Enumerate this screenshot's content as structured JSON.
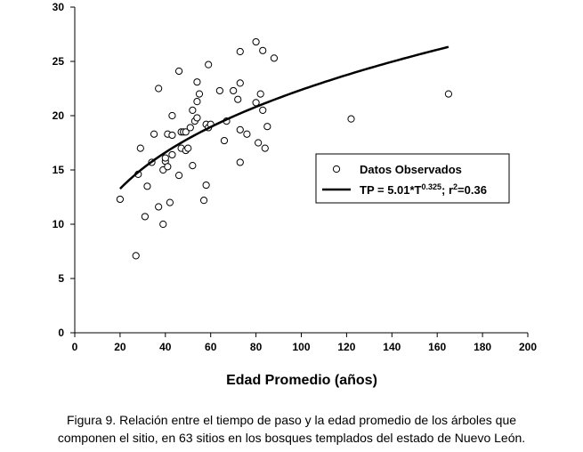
{
  "chart_data": {
    "type": "scatter",
    "xlabel": "Edad Promedio (años)",
    "ylabel": "",
    "xlim": [
      0,
      200
    ],
    "ylim": [
      0,
      30
    ],
    "x_ticks": [
      "0",
      "20",
      "40",
      "60",
      "80",
      "100",
      "120",
      "140",
      "160",
      "180",
      "200"
    ],
    "y_ticks": [
      "0",
      "5",
      "10",
      "15",
      "20",
      "25",
      "30"
    ],
    "grid": false,
    "legend_position": "middle-right",
    "series": [
      {
        "name": "Datos Observados",
        "kind": "scatter",
        "marker": "open-circle",
        "points": [
          [
            20,
            12.3
          ],
          [
            27,
            7.1
          ],
          [
            28,
            14.6
          ],
          [
            29,
            17.0
          ],
          [
            31,
            10.7
          ],
          [
            32,
            13.5
          ],
          [
            34,
            15.7
          ],
          [
            35,
            18.3
          ],
          [
            37,
            11.6
          ],
          [
            37,
            22.5
          ],
          [
            39,
            10.0
          ],
          [
            39,
            15.0
          ],
          [
            40,
            15.8
          ],
          [
            40,
            16.1
          ],
          [
            41,
            15.3
          ],
          [
            41,
            18.3
          ],
          [
            42,
            12.0
          ],
          [
            43,
            20.0
          ],
          [
            43,
            18.2
          ],
          [
            43,
            16.4
          ],
          [
            46,
            24.1
          ],
          [
            46,
            14.5
          ],
          [
            47,
            18.5
          ],
          [
            47,
            17.0
          ],
          [
            48,
            18.5
          ],
          [
            49,
            16.8
          ],
          [
            49,
            18.5
          ],
          [
            50,
            17.0
          ],
          [
            51,
            18.9
          ],
          [
            52,
            20.5
          ],
          [
            52,
            15.4
          ],
          [
            53,
            19.5
          ],
          [
            54,
            19.8
          ],
          [
            54,
            21.3
          ],
          [
            54,
            23.1
          ],
          [
            55,
            22.0
          ],
          [
            57,
            12.2
          ],
          [
            58,
            13.6
          ],
          [
            58,
            19.2
          ],
          [
            59,
            24.7
          ],
          [
            59,
            18.9
          ],
          [
            60,
            19.2
          ],
          [
            64,
            22.3
          ],
          [
            66,
            17.7
          ],
          [
            67,
            19.5
          ],
          [
            70,
            22.3
          ],
          [
            72,
            21.5
          ],
          [
            73,
            25.9
          ],
          [
            73,
            23.0
          ],
          [
            73,
            18.7
          ],
          [
            73,
            15.7
          ],
          [
            76,
            18.3
          ],
          [
            80,
            26.8
          ],
          [
            80,
            21.2
          ],
          [
            81,
            17.5
          ],
          [
            82,
            22.0
          ],
          [
            83,
            26.0
          ],
          [
            83,
            20.5
          ],
          [
            84,
            17.0
          ],
          [
            85,
            19.0
          ],
          [
            88,
            25.3
          ],
          [
            122,
            19.7
          ],
          [
            165,
            22.0
          ]
        ]
      },
      {
        "name": "TP = 5.01*T",
        "exponent_label": "0.325",
        "r2_label": "; r",
        "r2_sup": "2",
        "r2_value": "=0.36",
        "kind": "line",
        "a": 5.01,
        "b": 0.325,
        "x_range": [
          20,
          165
        ],
        "color": "#000000"
      }
    ]
  },
  "caption": {
    "line1": "Figura 9. Relación entre el tiempo de paso y la edad promedio de los árboles que",
    "line2": "componen el sitio, en 63 sitios en los bosques templados del estado de Nuevo León."
  }
}
